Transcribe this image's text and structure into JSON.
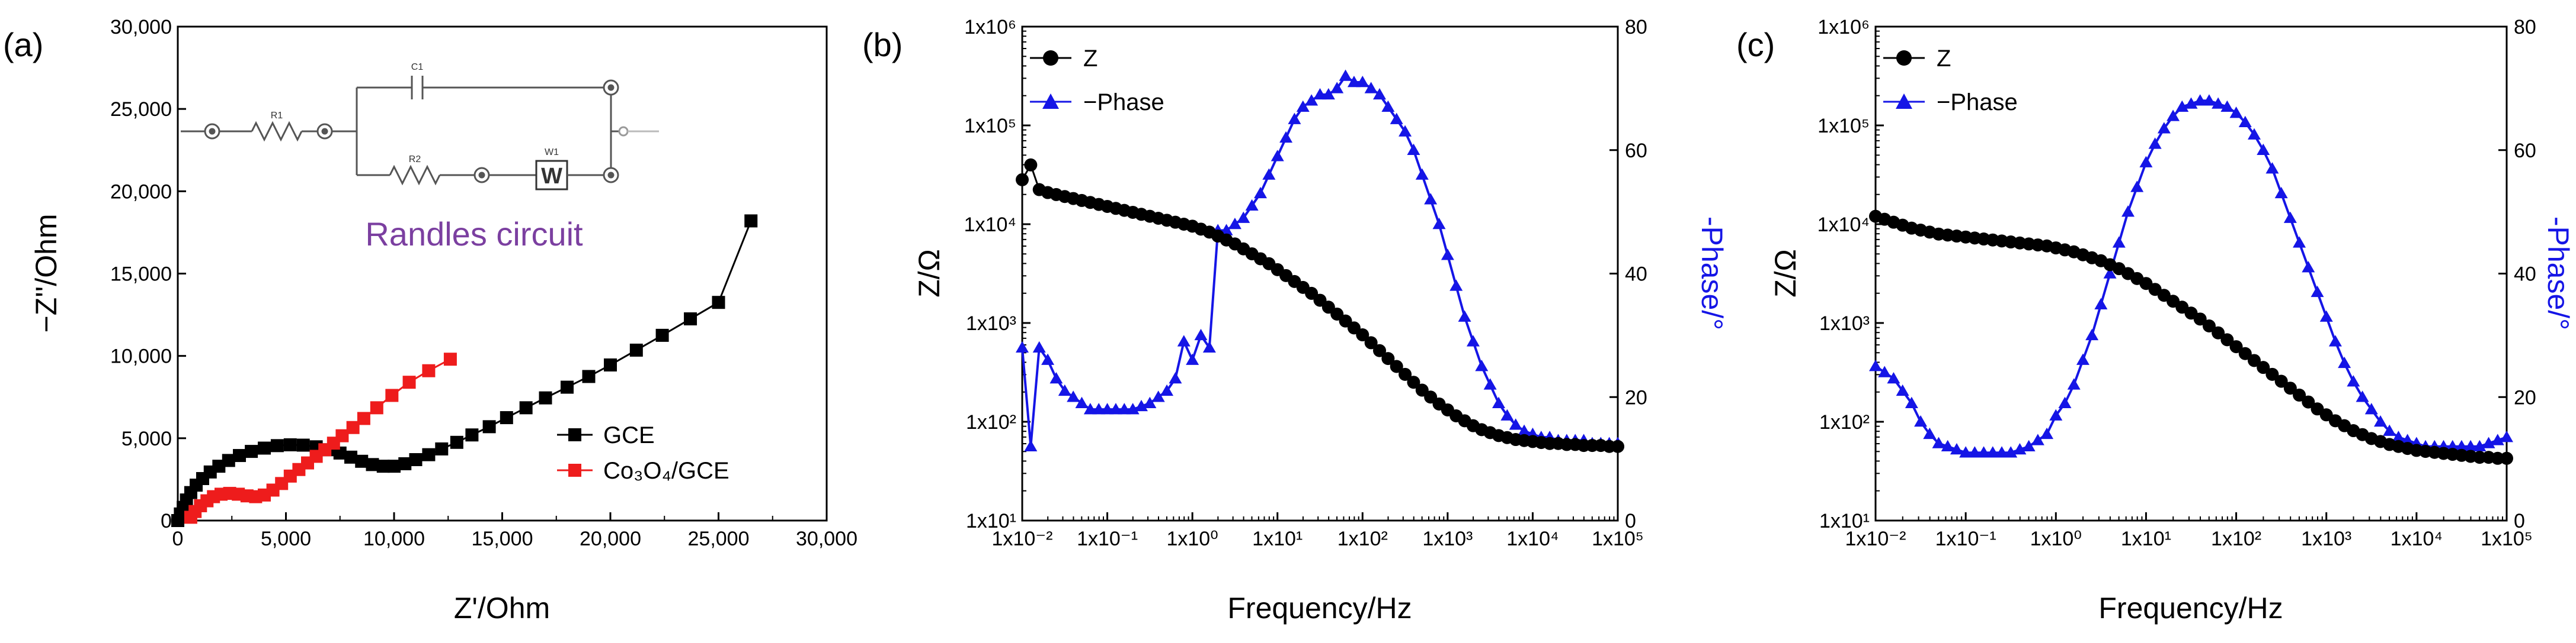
{
  "colors": {
    "black": "#000000",
    "red": "#ee1c1c",
    "blue": "#1515e6",
    "purple": "#7b3fa0",
    "circuit": "#555555"
  },
  "chart_data": [
    {
      "panel": "(a)",
      "type": "scatter",
      "xlabel": "Z'/Ohm",
      "ylabel": "−Z''/Ohm",
      "xlim": [
        0,
        30000
      ],
      "ylim": [
        0,
        30000
      ],
      "xticks": [
        "0",
        "5,000",
        "10,000",
        "15,000",
        "20,000",
        "25,000",
        "30,000"
      ],
      "yticks": [
        "0",
        "5,000",
        "10,000",
        "15,000",
        "20,000",
        "25,000",
        "30,000"
      ],
      "inset": {
        "title": "Randles circuit",
        "labels": {
          "r1": "R1",
          "c1": "C1",
          "r2": "R2",
          "w1": "W1",
          "w_box": "W"
        }
      },
      "series": [
        {
          "name": "GCE",
          "color": "#000000",
          "marker": "square",
          "x": [
            0,
            120,
            250,
            400,
            600,
            850,
            1150,
            1500,
            1900,
            2350,
            2850,
            3400,
            4000,
            4600,
            5200,
            5800,
            6400,
            6950,
            7500,
            8000,
            8500,
            9000,
            9500,
            10000,
            10500,
            11000,
            11600,
            12200,
            12900,
            13600,
            14400,
            15200,
            16100,
            17000,
            18000,
            19000,
            20000,
            21200,
            22400,
            23700,
            25000,
            26500
          ],
          "y": [
            0,
            400,
            800,
            1250,
            1700,
            2150,
            2550,
            2950,
            3300,
            3650,
            3950,
            4200,
            4400,
            4550,
            4600,
            4580,
            4480,
            4300,
            4100,
            3850,
            3600,
            3400,
            3300,
            3300,
            3450,
            3700,
            4000,
            4350,
            4750,
            5200,
            5700,
            6250,
            6850,
            7450,
            8100,
            8750,
            9450,
            10350,
            11250,
            12250,
            13250,
            18200
          ]
        },
        {
          "name": "Co₃O₄/GCE",
          "color": "#ee1c1c",
          "marker": "square",
          "x": [
            600,
            800,
            1050,
            1350,
            1650,
            2000,
            2400,
            2800,
            3200,
            3600,
            4000,
            4400,
            4800,
            5200,
            5600,
            6000,
            6400,
            6800,
            7200,
            7600,
            8100,
            8600,
            9200,
            9900,
            10700,
            11600,
            12600
          ],
          "y": [
            200,
            550,
            900,
            1200,
            1450,
            1600,
            1650,
            1600,
            1500,
            1450,
            1550,
            1850,
            2250,
            2700,
            3100,
            3500,
            3900,
            4300,
            4700,
            5150,
            5650,
            6200,
            6850,
            7600,
            8400,
            9100,
            9800
          ]
        }
      ],
      "legend": [
        "GCE",
        "Co₃O₄/GCE"
      ]
    },
    {
      "panel": "(b)",
      "type": "line",
      "xlabel": "Frequency/Hz",
      "ylabel_left": "Z/Ω",
      "ylabel_right": "-Phase/°",
      "xlim_log10": [
        -2,
        5
      ],
      "ylim_left_log10": [
        1,
        6
      ],
      "ylim_right": [
        0,
        80
      ],
      "xticks": [
        "1x10⁻²",
        "1x10⁻¹",
        "1x10⁰",
        "1x10¹",
        "1x10²",
        "1x10³",
        "1x10⁴",
        "1x10⁵"
      ],
      "yticks_left": [
        "10¹",
        "10²",
        "10³",
        "10⁴",
        "10⁵",
        "10⁶"
      ],
      "yticks_right": [
        "0",
        "20",
        "40",
        "60",
        "80"
      ],
      "legend": [
        "Z",
        "−Phase"
      ],
      "series": [
        {
          "name": "Z",
          "color": "#000000",
          "marker": "circle",
          "log10_freq": [
            -2,
            -1.9,
            -1.8,
            -1.7,
            -1.6,
            -1.5,
            -1.4,
            -1.3,
            -1.2,
            -1.1,
            -1.0,
            -0.9,
            -0.8,
            -0.7,
            -0.6,
            -0.5,
            -0.4,
            -0.3,
            -0.2,
            -0.1,
            0,
            0.1,
            0.2,
            0.3,
            0.4,
            0.5,
            0.6,
            0.7,
            0.8,
            0.9,
            1.0,
            1.1,
            1.2,
            1.3,
            1.4,
            1.5,
            1.6,
            1.7,
            1.8,
            1.9,
            2.0,
            2.1,
            2.2,
            2.3,
            2.4,
            2.5,
            2.6,
            2.7,
            2.8,
            2.9,
            3.0,
            3.1,
            3.2,
            3.3,
            3.4,
            3.5,
            3.6,
            3.7,
            3.8,
            3.9,
            4.0,
            4.1,
            4.2,
            4.3,
            4.4,
            4.5,
            4.6,
            4.7,
            4.8,
            4.9,
            5.0
          ],
          "log10_Z": [
            4.45,
            4.6,
            4.35,
            4.32,
            4.3,
            4.28,
            4.26,
            4.24,
            4.22,
            4.2,
            4.18,
            4.16,
            4.14,
            4.12,
            4.1,
            4.08,
            4.06,
            4.04,
            4.02,
            4.0,
            3.98,
            3.95,
            3.92,
            3.88,
            3.84,
            3.8,
            3.75,
            3.7,
            3.65,
            3.6,
            3.54,
            3.48,
            3.42,
            3.36,
            3.3,
            3.23,
            3.16,
            3.09,
            3.02,
            2.95,
            2.88,
            2.8,
            2.72,
            2.64,
            2.56,
            2.48,
            2.4,
            2.32,
            2.25,
            2.18,
            2.12,
            2.06,
            2.01,
            1.96,
            1.92,
            1.89,
            1.86,
            1.84,
            1.82,
            1.81,
            1.8,
            1.79,
            1.78,
            1.78,
            1.77,
            1.77,
            1.76,
            1.76,
            1.76,
            1.75,
            1.75
          ]
        },
        {
          "name": "−Phase",
          "color": "#1515e6",
          "marker": "triangle",
          "log10_freq": [
            -2,
            -1.9,
            -1.8,
            -1.7,
            -1.6,
            -1.5,
            -1.4,
            -1.3,
            -1.2,
            -1.1,
            -1.0,
            -0.9,
            -0.8,
            -0.7,
            -0.6,
            -0.5,
            -0.4,
            -0.3,
            -0.2,
            -0.1,
            0,
            0.1,
            0.2,
            0.3,
            0.4,
            0.5,
            0.6,
            0.7,
            0.8,
            0.9,
            1.0,
            1.1,
            1.2,
            1.3,
            1.4,
            1.5,
            1.6,
            1.7,
            1.8,
            1.9,
            2.0,
            2.1,
            2.2,
            2.3,
            2.4,
            2.5,
            2.6,
            2.7,
            2.8,
            2.9,
            3.0,
            3.1,
            3.2,
            3.3,
            3.4,
            3.5,
            3.6,
            3.7,
            3.8,
            3.9,
            4.0,
            4.1,
            4.2,
            4.3,
            4.4,
            4.5,
            4.6,
            4.7,
            4.8,
            4.9,
            5.0
          ],
          "phase_deg": [
            28,
            12,
            28,
            26,
            23,
            21,
            20,
            19,
            18,
            18,
            18,
            18,
            18,
            18,
            18.5,
            19,
            20,
            21,
            23,
            29,
            26,
            30,
            28,
            47,
            47,
            48,
            49,
            51,
            53,
            56,
            59,
            62,
            65,
            67,
            68,
            69,
            69,
            70,
            72,
            71,
            71,
            70,
            69,
            67,
            65,
            63,
            60,
            56,
            52,
            48,
            43,
            38,
            33,
            29,
            25,
            22,
            19,
            17,
            15.5,
            14.5,
            14,
            13.5,
            13.5,
            13,
            13,
            13,
            13,
            12.5,
            12.5,
            12.5,
            12.5
          ]
        }
      ]
    },
    {
      "panel": "(c)",
      "type": "line",
      "xlabel": "Frequency/Hz",
      "ylabel_left": "Z/Ω",
      "ylabel_right": "-Phase/°",
      "xlim_log10": [
        -2,
        5
      ],
      "ylim_left_log10": [
        1,
        6
      ],
      "ylim_right": [
        0,
        80
      ],
      "xticks": [
        "1x10⁻²",
        "1x10⁻¹",
        "1x10⁰",
        "1x10¹",
        "1x10²",
        "1x10³",
        "1x10⁴",
        "1x10⁵"
      ],
      "yticks_left": [
        "10¹",
        "10²",
        "10³",
        "10⁴",
        "10⁵",
        "10⁶"
      ],
      "yticks_right": [
        "0",
        "20",
        "40",
        "60",
        "80"
      ],
      "legend": [
        "Z",
        "−Phase"
      ],
      "series": [
        {
          "name": "Z",
          "color": "#000000",
          "marker": "circle",
          "log10_freq": [
            -2,
            -1.9,
            -1.8,
            -1.7,
            -1.6,
            -1.5,
            -1.4,
            -1.3,
            -1.2,
            -1.1,
            -1.0,
            -0.9,
            -0.8,
            -0.7,
            -0.6,
            -0.5,
            -0.4,
            -0.3,
            -0.2,
            -0.1,
            0,
            0.1,
            0.2,
            0.3,
            0.4,
            0.5,
            0.6,
            0.7,
            0.8,
            0.9,
            1.0,
            1.1,
            1.2,
            1.3,
            1.4,
            1.5,
            1.6,
            1.7,
            1.8,
            1.9,
            2.0,
            2.1,
            2.2,
            2.3,
            2.4,
            2.5,
            2.6,
            2.7,
            2.8,
            2.9,
            3.0,
            3.1,
            3.2,
            3.3,
            3.4,
            3.5,
            3.6,
            3.7,
            3.8,
            3.9,
            4.0,
            4.1,
            4.2,
            4.3,
            4.4,
            4.5,
            4.6,
            4.7,
            4.8,
            4.9,
            5.0
          ],
          "log10_Z": [
            4.08,
            4.05,
            4.02,
            3.99,
            3.96,
            3.94,
            3.92,
            3.9,
            3.89,
            3.88,
            3.87,
            3.86,
            3.85,
            3.84,
            3.83,
            3.82,
            3.81,
            3.8,
            3.79,
            3.78,
            3.76,
            3.74,
            3.72,
            3.69,
            3.66,
            3.63,
            3.59,
            3.55,
            3.5,
            3.45,
            3.4,
            3.34,
            3.28,
            3.22,
            3.16,
            3.1,
            3.04,
            2.97,
            2.9,
            2.83,
            2.76,
            2.69,
            2.62,
            2.55,
            2.48,
            2.41,
            2.34,
            2.27,
            2.2,
            2.13,
            2.07,
            2.01,
            1.96,
            1.91,
            1.87,
            1.83,
            1.8,
            1.77,
            1.75,
            1.73,
            1.71,
            1.7,
            1.69,
            1.68,
            1.67,
            1.66,
            1.65,
            1.64,
            1.64,
            1.63,
            1.63
          ]
        },
        {
          "name": "−Phase",
          "color": "#1515e6",
          "marker": "triangle",
          "log10_freq": [
            -2,
            -1.9,
            -1.8,
            -1.7,
            -1.6,
            -1.5,
            -1.4,
            -1.3,
            -1.2,
            -1.1,
            -1.0,
            -0.9,
            -0.8,
            -0.7,
            -0.6,
            -0.5,
            -0.4,
            -0.3,
            -0.2,
            -0.1,
            0,
            0.1,
            0.2,
            0.3,
            0.4,
            0.5,
            0.6,
            0.7,
            0.8,
            0.9,
            1.0,
            1.1,
            1.2,
            1.3,
            1.4,
            1.5,
            1.6,
            1.7,
            1.8,
            1.9,
            2.0,
            2.1,
            2.2,
            2.3,
            2.4,
            2.5,
            2.6,
            2.7,
            2.8,
            2.9,
            3.0,
            3.1,
            3.2,
            3.3,
            3.4,
            3.5,
            3.6,
            3.7,
            3.8,
            3.9,
            4.0,
            4.1,
            4.2,
            4.3,
            4.4,
            4.5,
            4.6,
            4.7,
            4.8,
            4.9,
            5.0
          ],
          "phase_deg": [
            25,
            24,
            23,
            21,
            19,
            16,
            14,
            12.5,
            12,
            11.5,
            11,
            11,
            11,
            11,
            11,
            11,
            11.5,
            12,
            13,
            14,
            17,
            19,
            22,
            26,
            30,
            35,
            40,
            45,
            50,
            54,
            58,
            61,
            63.5,
            65.5,
            67,
            67.5,
            68,
            68,
            67.5,
            67,
            66,
            64.5,
            62.5,
            60,
            57,
            53,
            49,
            45,
            41,
            37,
            33,
            29,
            25.5,
            22.5,
            20,
            18,
            16,
            14.5,
            13.5,
            13,
            12.5,
            12,
            12,
            12,
            12,
            12,
            12,
            12,
            12.5,
            13,
            13.5
          ]
        }
      ]
    }
  ]
}
